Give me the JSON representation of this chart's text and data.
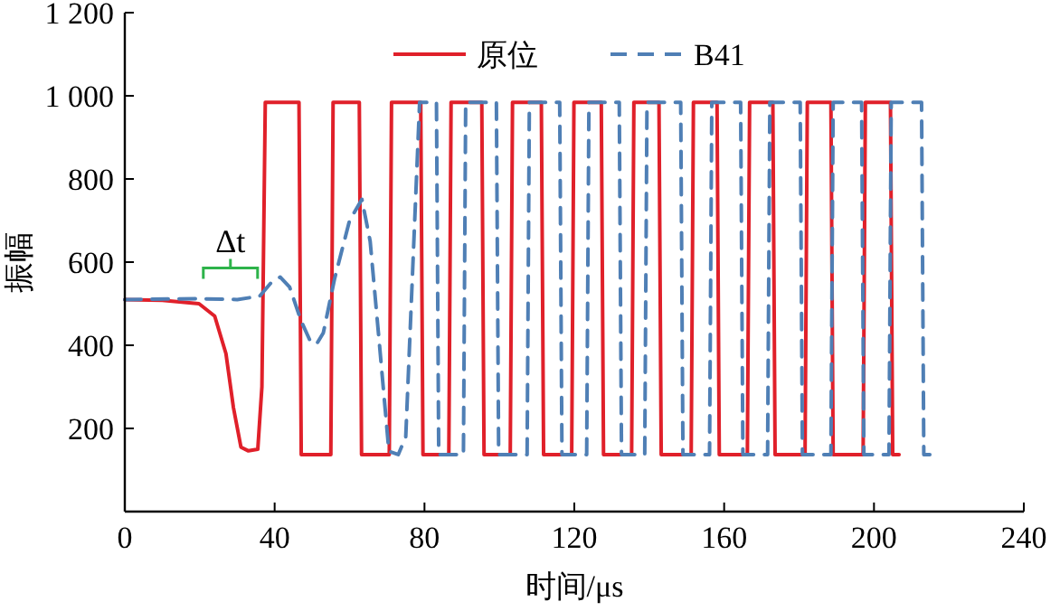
{
  "chart_data": {
    "type": "line",
    "xlabel": "时间/μs",
    "ylabel": "振幅",
    "xlim": [
      0,
      240
    ],
    "xticks": [
      0,
      40,
      80,
      120,
      160,
      200,
      240
    ],
    "ylim": [
      0,
      1200
    ],
    "yticks": [
      200,
      400,
      600,
      800,
      {
        "value": 1000,
        "label": "1 000"
      },
      {
        "value": 1200,
        "label": "1 200"
      }
    ],
    "grid": false,
    "legend": "top",
    "marker": "none",
    "annotations": [
      "Δt"
    ],
    "series": [
      {
        "name": "原位",
        "color": "#e0202a",
        "line_style": "solid",
        "x": [
          0,
          10,
          19.8,
          24,
          27,
          29,
          31,
          33,
          35.5,
          36.6,
          37.5,
          46.5,
          47.1,
          55.0,
          55.6,
          62.6,
          63.2,
          70.6,
          71.2,
          79.0,
          79.6,
          86.5,
          87.1,
          95.3,
          95.9,
          102.9,
          103.5,
          111.2,
          111.8,
          119.3,
          119.9,
          127.2,
          127.8,
          135.3,
          135.9,
          142.6,
          143.2,
          151.2,
          151.8,
          158.1,
          158.7,
          166.2,
          166.8,
          173.0,
          173.6,
          181.6,
          182.2,
          188.5,
          189.1,
          197.1,
          197.7,
          204.4,
          205.0,
          206.7
        ],
        "values": [
          510,
          508,
          500,
          470,
          380,
          250,
          155,
          146,
          150,
          300,
          984,
          984,
          137,
          137,
          984,
          984,
          137,
          137,
          984,
          984,
          137,
          137,
          984,
          984,
          137,
          137,
          984,
          984,
          137,
          137,
          984,
          984,
          137,
          137,
          984,
          984,
          137,
          137,
          984,
          984,
          137,
          137,
          984,
          984,
          137,
          137,
          984,
          984,
          137,
          137,
          984,
          984,
          137,
          137
        ]
      },
      {
        "name": "B41",
        "color": "#4f7fb5",
        "line_style": "dashed",
        "x": [
          0,
          20,
          30,
          36,
          39,
          41.5,
          44,
          47,
          49.5,
          51.2,
          53,
          56,
          60,
          63.3,
          65.5,
          68,
          70.5,
          73,
          75,
          78.7,
          83.2,
          83.8,
          90.4,
          91.0,
          99.2,
          99.8,
          107.4,
          108.0,
          116.1,
          116.7,
          123.3,
          123.9,
          132.0,
          132.6,
          138.8,
          139.4,
          148.4,
          149.0,
          156.1,
          156.7,
          164.4,
          165.0,
          171.6,
          172.2,
          180.3,
          180.9,
          188.5,
          189.1,
          196.7,
          197.3,
          204.0,
          204.6,
          212.7,
          213.3,
          214.9
        ],
        "values": [
          510,
          512,
          510,
          518,
          550,
          564,
          540,
          460,
          410,
          403,
          430,
          560,
          700,
          751,
          650,
          400,
          145,
          137,
          180,
          984,
          984,
          137,
          137,
          984,
          984,
          137,
          137,
          984,
          984,
          137,
          137,
          984,
          984,
          137,
          137,
          984,
          984,
          137,
          137,
          984,
          984,
          137,
          137,
          984,
          984,
          137,
          137,
          984,
          984,
          137,
          137,
          984,
          984,
          137,
          137
        ]
      }
    ]
  }
}
